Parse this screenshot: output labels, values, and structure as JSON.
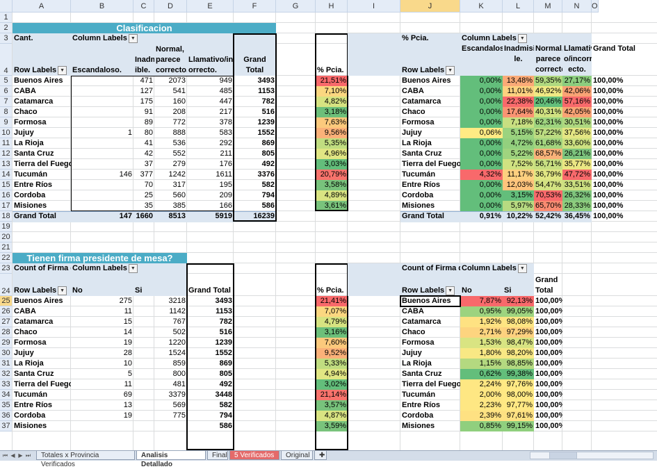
{
  "columns": [
    "A",
    "B",
    "C",
    "D",
    "E",
    "F",
    "G",
    "H",
    "I",
    "J",
    "K",
    "L",
    "M",
    "N",
    "O"
  ],
  "rows": [
    "1",
    "2",
    "3",
    "4",
    "5",
    "6",
    "7",
    "8",
    "9",
    "10",
    "11",
    "12",
    "13",
    "14",
    "15",
    "16",
    "17",
    "18",
    "19",
    "20",
    "21",
    "22",
    "23",
    "24",
    "25",
    "26",
    "27",
    "28",
    "29",
    "30",
    "31",
    "32",
    "33",
    "34",
    "35",
    "36",
    "37"
  ],
  "pivot1": {
    "title": "Clasificacion",
    "cant": "Cant.",
    "col_labels": "Column Labels",
    "row_labels": "Row Labels",
    "headers": [
      "Escandaloso.",
      "Inadmis ible.",
      "Normal, parece correcto.",
      "Llamativo/inc orrecto.",
      "Grand Total"
    ],
    "rows": [
      {
        "label": "Buenos Aires",
        "v": [
          "",
          "471",
          "2073",
          "949",
          "3493"
        ]
      },
      {
        "label": "CABA",
        "v": [
          "",
          "127",
          "541",
          "485",
          "1153"
        ]
      },
      {
        "label": "Catamarca",
        "v": [
          "",
          "175",
          "160",
          "447",
          "782"
        ]
      },
      {
        "label": "Chaco",
        "v": [
          "",
          "91",
          "208",
          "217",
          "516"
        ]
      },
      {
        "label": "Formosa",
        "v": [
          "",
          "89",
          "772",
          "378",
          "1239"
        ]
      },
      {
        "label": "Jujuy",
        "v": [
          "1",
          "80",
          "888",
          "583",
          "1552"
        ]
      },
      {
        "label": "La Rioja",
        "v": [
          "",
          "41",
          "536",
          "292",
          "869"
        ]
      },
      {
        "label": "Santa Cruz",
        "v": [
          "",
          "42",
          "552",
          "211",
          "805"
        ]
      },
      {
        "label": "Tierra del Fuego",
        "v": [
          "",
          "37",
          "279",
          "176",
          "492"
        ]
      },
      {
        "label": "Tucumán",
        "v": [
          "146",
          "377",
          "1242",
          "1611",
          "3376"
        ]
      },
      {
        "label": "Entre Ríos",
        "v": [
          "",
          "70",
          "317",
          "195",
          "582"
        ]
      },
      {
        "label": "Cordoba",
        "v": [
          "",
          "25",
          "560",
          "209",
          "794"
        ]
      },
      {
        "label": "Misiones",
        "v": [
          "",
          "35",
          "385",
          "166",
          "586"
        ]
      }
    ],
    "total": {
      "label": "Grand Total",
      "v": [
        "147",
        "1660",
        "8513",
        "5919",
        "16239"
      ]
    }
  },
  "pcia1": {
    "header": "% Pcia.",
    "values": [
      "21,51%",
      "7,10%",
      "4,82%",
      "3,18%",
      "7,63%",
      "9,56%",
      "5,35%",
      "4,96%",
      "3,03%",
      "20,79%",
      "3,58%",
      "4,89%",
      "3,61%"
    ],
    "colors": [
      "#f8696b",
      "#fbd780",
      "#d6e381",
      "#6cbf7a",
      "#fcc97c",
      "#fbb179",
      "#c0dd80",
      "#e1e683",
      "#63be7b",
      "#f8736c",
      "#78c37c",
      "#d9e482",
      "#79c37c"
    ]
  },
  "pivot2": {
    "pct": "% Pcia.",
    "col_labels": "Column Labels",
    "row_labels": "Row Labels",
    "headers": [
      "Escandaloso.",
      "Inadmisib le.",
      "Normal, parece correcto .",
      "Llamativ o/incorr ecto.",
      "Grand Total"
    ],
    "rows": [
      {
        "label": "Buenos Aires",
        "v": [
          "0,00%",
          "13,48%",
          "59,35%",
          "27,17%",
          "100,00%"
        ]
      },
      {
        "label": "CABA",
        "v": [
          "0,00%",
          "11,01%",
          "46,92%",
          "42,06%",
          "100,00%"
        ]
      },
      {
        "label": "Catamarca",
        "v": [
          "0,00%",
          "22,38%",
          "20,46%",
          "57,16%",
          "100,00%"
        ]
      },
      {
        "label": "Chaco",
        "v": [
          "0,00%",
          "17,64%",
          "40,31%",
          "42,05%",
          "100,00%"
        ]
      },
      {
        "label": "Formosa",
        "v": [
          "0,00%",
          "7,18%",
          "62,31%",
          "30,51%",
          "100,00%"
        ]
      },
      {
        "label": "Jujuy",
        "v": [
          "0,06%",
          "5,15%",
          "57,22%",
          "37,56%",
          "100,00%"
        ]
      },
      {
        "label": "La Rioja",
        "v": [
          "0,00%",
          "4,72%",
          "61,68%",
          "33,60%",
          "100,00%"
        ]
      },
      {
        "label": "Santa Cruz",
        "v": [
          "0,00%",
          "5,22%",
          "68,57%",
          "26,21%",
          "100,00%"
        ]
      },
      {
        "label": "Tierra del Fuego",
        "v": [
          "0,00%",
          "7,52%",
          "56,71%",
          "35,77%",
          "100,00%"
        ]
      },
      {
        "label": "Tucumán",
        "v": [
          "4,32%",
          "11,17%",
          "36,79%",
          "47,72%",
          "100,00%"
        ]
      },
      {
        "label": "Entre Ríos",
        "v": [
          "0,00%",
          "12,03%",
          "54,47%",
          "33,51%",
          "100,00%"
        ]
      },
      {
        "label": "Cordoba",
        "v": [
          "0,00%",
          "3,15%",
          "70,53%",
          "26,32%",
          "100,00%"
        ]
      },
      {
        "label": "Misiones",
        "v": [
          "0,00%",
          "5,97%",
          "65,70%",
          "28,33%",
          "100,00%"
        ]
      }
    ],
    "colors": [
      [
        "#63be7b",
        "#fbaa77",
        "#b0d980",
        "#8ccd7e"
      ],
      [
        "#63be7b",
        "#fdd17f",
        "#f0e984",
        "#f9a375"
      ],
      [
        "#63be7b",
        "#f8696b",
        "#63be7b",
        "#f8696b"
      ],
      [
        "#63be7b",
        "#fa9473",
        "#d1e281",
        "#f9a375"
      ],
      [
        "#63be7b",
        "#c8df81",
        "#9ed47f",
        "#aed880"
      ],
      [
        "#ffeb84",
        "#9bd37f",
        "#bcdc81",
        "#e4e683"
      ],
      [
        "#63be7b",
        "#93d07e",
        "#a3d57f",
        "#cde181"
      ],
      [
        "#63be7b",
        "#a0d47f",
        "#f9b279",
        "#7cc47d"
      ],
      [
        "#63be7b",
        "#d0e281",
        "#c8df81",
        "#ebe783"
      ],
      [
        "#f8696b",
        "#fdd07f",
        "#e1e683",
        "#f8696b"
      ],
      [
        "#63be7b",
        "#fec47c",
        "#d3e282",
        "#ccdf81"
      ],
      [
        "#63be7b",
        "#63be7b",
        "#f8696b",
        "#7fc57d"
      ],
      [
        "#63be7b",
        "#b7da81",
        "#f98b71",
        "#8dcd7e"
      ]
    ],
    "total": {
      "label": "Grand Total",
      "v": [
        "0,91%",
        "10,22%",
        "52,42%",
        "36,45%",
        "100,00%"
      ]
    }
  },
  "pivot3": {
    "title": "Tienen firma presidente de mesa?",
    "count": "Count of Firma de",
    "col_labels": "Column Labels",
    "row_labels": "Row Labels",
    "headers": [
      "No",
      "Si",
      "Grand Total"
    ],
    "rows": [
      {
        "label": "Buenos Aires",
        "v": [
          "275",
          "3218",
          "3493"
        ]
      },
      {
        "label": "CABA",
        "v": [
          "11",
          "1142",
          "1153"
        ]
      },
      {
        "label": "Catamarca",
        "v": [
          "15",
          "767",
          "782"
        ]
      },
      {
        "label": "Chaco",
        "v": [
          "14",
          "502",
          "516"
        ]
      },
      {
        "label": "Formosa",
        "v": [
          "19",
          "1220",
          "1239"
        ]
      },
      {
        "label": "Jujuy",
        "v": [
          "28",
          "1524",
          "1552"
        ]
      },
      {
        "label": "La Rioja",
        "v": [
          "10",
          "859",
          "869"
        ]
      },
      {
        "label": "Santa Cruz",
        "v": [
          "5",
          "800",
          "805"
        ]
      },
      {
        "label": "Tierra del Fuego",
        "v": [
          "11",
          "481",
          "492"
        ]
      },
      {
        "label": "Tucumán",
        "v": [
          "69",
          "3379",
          "3448"
        ]
      },
      {
        "label": "Entre Ríos",
        "v": [
          "13",
          "569",
          "582"
        ]
      },
      {
        "label": "Cordoba",
        "v": [
          "19",
          "775",
          "794"
        ]
      },
      {
        "label": "Misiones",
        "v": [
          "",
          "",
          "586"
        ]
      }
    ]
  },
  "pcia3": {
    "header": "% Pcia.",
    "values": [
      "21,41%",
      "7,07%",
      "4,79%",
      "3,16%",
      "7,60%",
      "9,52%",
      "5,33%",
      "4,94%",
      "3,02%",
      "21,14%",
      "3,57%",
      "4,87%",
      "3,59%"
    ],
    "colors": [
      "#f8696b",
      "#fbd780",
      "#d6e381",
      "#6cbf7a",
      "#fcc97c",
      "#fbb179",
      "#c0dd80",
      "#e1e683",
      "#63be7b",
      "#f8736c",
      "#78c37c",
      "#d9e482",
      "#79c37c"
    ]
  },
  "pivot4": {
    "count": "Count of Firma de",
    "col_labels": "Column Labels",
    "row_labels": "Row Labels",
    "headers": [
      "No",
      "Si",
      "Grand Total"
    ],
    "rows": [
      {
        "label": "Buenos Aires",
        "v": [
          "7,87%",
          "92,13%",
          "100,00%"
        ]
      },
      {
        "label": "CABA",
        "v": [
          "0,95%",
          "99,05%",
          "100,00%"
        ]
      },
      {
        "label": "Catamarca",
        "v": [
          "1,92%",
          "98,08%",
          "100,00%"
        ]
      },
      {
        "label": "Chaco",
        "v": [
          "2,71%",
          "97,29%",
          "100,00%"
        ]
      },
      {
        "label": "Formosa",
        "v": [
          "1,53%",
          "98,47%",
          "100,00%"
        ]
      },
      {
        "label": "Jujuy",
        "v": [
          "1,80%",
          "98,20%",
          "100,00%"
        ]
      },
      {
        "label": "La Rioja",
        "v": [
          "1,15%",
          "98,85%",
          "100,00%"
        ]
      },
      {
        "label": "Santa Cruz",
        "v": [
          "0,62%",
          "99,38%",
          "100,00%"
        ]
      },
      {
        "label": "Tierra del Fuego",
        "v": [
          "2,24%",
          "97,76%",
          "100,00%"
        ]
      },
      {
        "label": "Tucumán",
        "v": [
          "2,00%",
          "98,00%",
          "100,00%"
        ]
      },
      {
        "label": "Entre Ríos",
        "v": [
          "2,23%",
          "97,77%",
          "100,00%"
        ]
      },
      {
        "label": "Cordoba",
        "v": [
          "2,39%",
          "97,61%",
          "100,00%"
        ]
      },
      {
        "label": "Misiones",
        "v": [
          "0,85%",
          "99,15%",
          "100,00%"
        ]
      }
    ],
    "colors": [
      [
        "#f8696b",
        "#f8696b"
      ],
      [
        "#9cd37f",
        "#9ed47f"
      ],
      [
        "#fee282",
        "#fde582"
      ],
      [
        "#fdd47f",
        "#fdd17f"
      ],
      [
        "#d9e482",
        "#d8e482"
      ],
      [
        "#f8e884",
        "#f8e884"
      ],
      [
        "#b4d980",
        "#b3d980"
      ],
      [
        "#63be7b",
        "#63be7b"
      ],
      [
        "#fee783",
        "#ffe984"
      ],
      [
        "#fee783",
        "#ffe984"
      ],
      [
        "#fee783",
        "#ffe984"
      ],
      [
        "#fee182",
        "#fee182"
      ],
      [
        "#90cf7e",
        "#90cf7e"
      ]
    ]
  },
  "tabs": [
    {
      "label": "Totales x Provincia Verificados",
      "state": "normal"
    },
    {
      "label": "Analisis Detallado",
      "state": "active"
    },
    {
      "label": "Final",
      "state": "normal"
    },
    {
      "label": "5 Verificados",
      "state": "red"
    },
    {
      "label": "Original",
      "state": "normal"
    }
  ],
  "nav_icons": [
    "first-sheet-icon",
    "prev-sheet-icon",
    "next-sheet-icon",
    "last-sheet-icon"
  ],
  "selected_cell": "J25"
}
